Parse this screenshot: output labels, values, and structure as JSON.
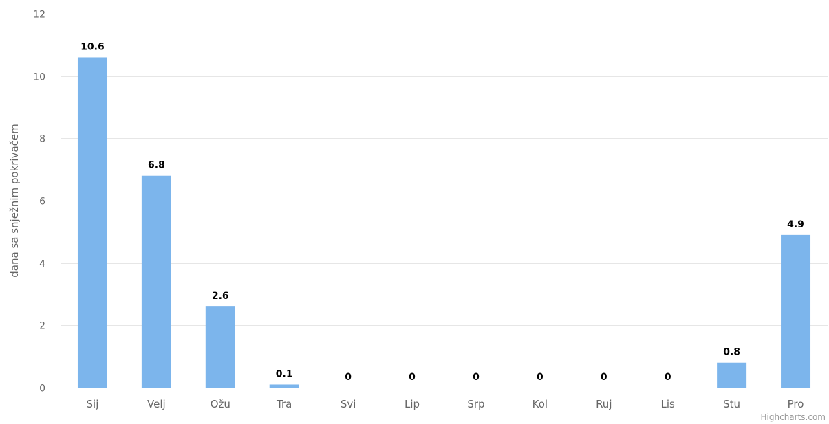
{
  "chart_data": {
    "type": "bar",
    "categories": [
      "Sij",
      "Velj",
      "Ožu",
      "Tra",
      "Svi",
      "Lip",
      "Srp",
      "Kol",
      "Ruj",
      "Lis",
      "Stu",
      "Pro"
    ],
    "values": [
      10.6,
      6.8,
      2.6,
      0.1,
      0,
      0,
      0,
      0,
      0,
      0,
      0.8,
      4.9
    ],
    "data_labels": [
      "10.6",
      "6.8",
      "2.6",
      "0.1",
      "0",
      "0",
      "0",
      "0",
      "0",
      "0",
      "0.8",
      "4.9"
    ],
    "ylabel": "dana sa snježnim pokrivačem",
    "xlabel": "",
    "ylim": [
      0,
      12
    ],
    "yticks": [
      0,
      2,
      4,
      6,
      8,
      10,
      12
    ],
    "grid": true,
    "legend": "none",
    "bar_color": "#7cb5ec"
  },
  "credits": "Highcharts.com"
}
